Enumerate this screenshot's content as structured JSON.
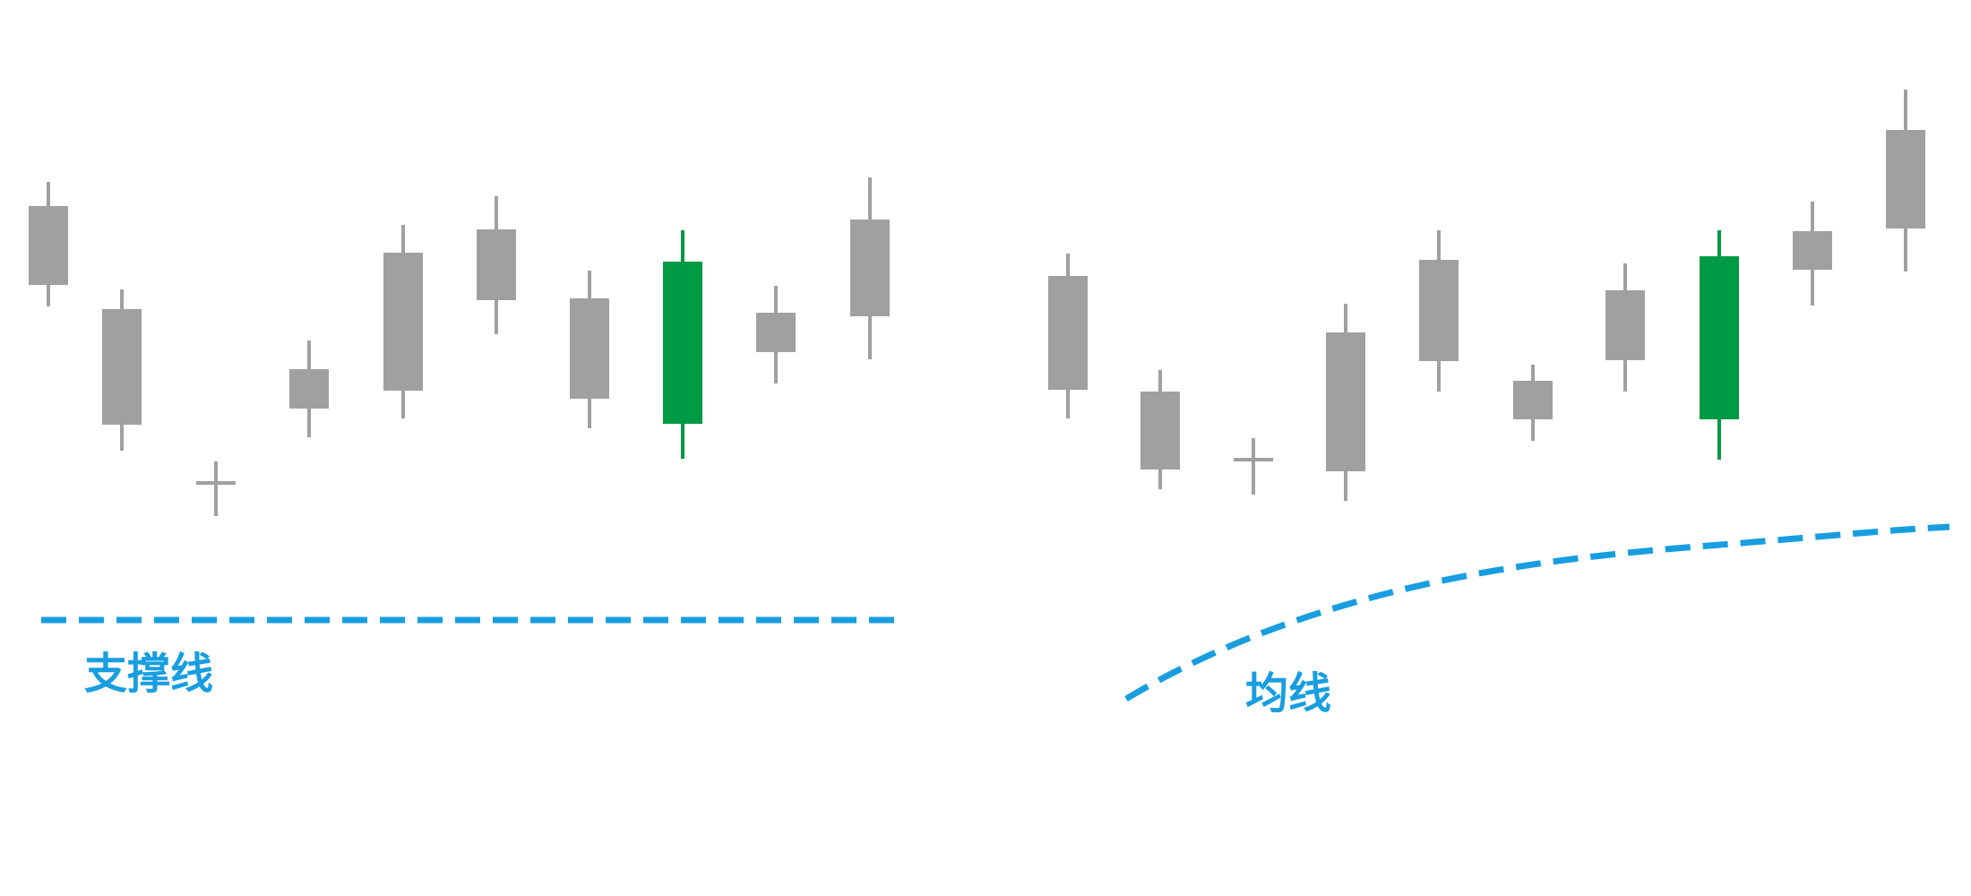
{
  "colors": {
    "neutral": "#a0a0a0",
    "highlight": "#009a44",
    "line": "#189ee0",
    "background": "#ffffff"
  },
  "panels": [
    {
      "name": "support-line-panel",
      "line_type": "horizontal",
      "label": "支撑线",
      "candles": [
        {
          "open": 770,
          "close": 682,
          "high": 797,
          "low": 658,
          "color": "neutral"
        },
        {
          "open": 655,
          "close": 526,
          "high": 677,
          "low": 497,
          "color": "neutral"
        },
        {
          "open": 461,
          "close": 461,
          "high": 485,
          "low": 424,
          "color": "neutral",
          "doji": true
        },
        {
          "open": 588,
          "close": 544,
          "high": 620,
          "low": 512,
          "color": "neutral"
        },
        {
          "open": 718,
          "close": 564,
          "high": 749,
          "low": 533,
          "color": "neutral"
        },
        {
          "open": 744,
          "close": 665,
          "high": 781,
          "low": 627,
          "color": "neutral"
        },
        {
          "open": 667,
          "close": 555,
          "high": 698,
          "low": 522,
          "color": "neutral"
        },
        {
          "open": 527,
          "close": 708,
          "high": 743,
          "low": 488,
          "color": "highlight"
        },
        {
          "open": 651,
          "close": 607,
          "high": 681,
          "low": 572,
          "color": "neutral"
        },
        {
          "open": 755,
          "close": 647,
          "high": 802,
          "low": 599,
          "color": "neutral"
        }
      ]
    },
    {
      "name": "moving-average-panel",
      "line_type": "curve",
      "label": "均线",
      "candles": [
        {
          "open": 692,
          "close": 565,
          "high": 717,
          "low": 533,
          "color": "neutral"
        },
        {
          "open": 563,
          "close": 476,
          "high": 587,
          "low": 454,
          "color": "neutral"
        },
        {
          "open": 487,
          "close": 487,
          "high": 511,
          "low": 448,
          "color": "neutral",
          "doji": true
        },
        {
          "open": 629,
          "close": 474,
          "high": 661,
          "low": 441,
          "color": "neutral"
        },
        {
          "open": 710,
          "close": 597,
          "high": 743,
          "low": 563,
          "color": "neutral"
        },
        {
          "open": 575,
          "close": 532,
          "high": 593,
          "low": 508,
          "color": "neutral"
        },
        {
          "open": 676,
          "close": 598,
          "high": 706,
          "low": 563,
          "color": "neutral"
        },
        {
          "open": 532,
          "close": 714,
          "high": 743,
          "low": 487,
          "color": "highlight"
        },
        {
          "open": 742,
          "close": 699,
          "high": 775,
          "low": 659,
          "color": "neutral"
        },
        {
          "open": 855,
          "close": 745,
          "high": 900,
          "low": 697,
          "color": "neutral"
        }
      ]
    }
  ]
}
